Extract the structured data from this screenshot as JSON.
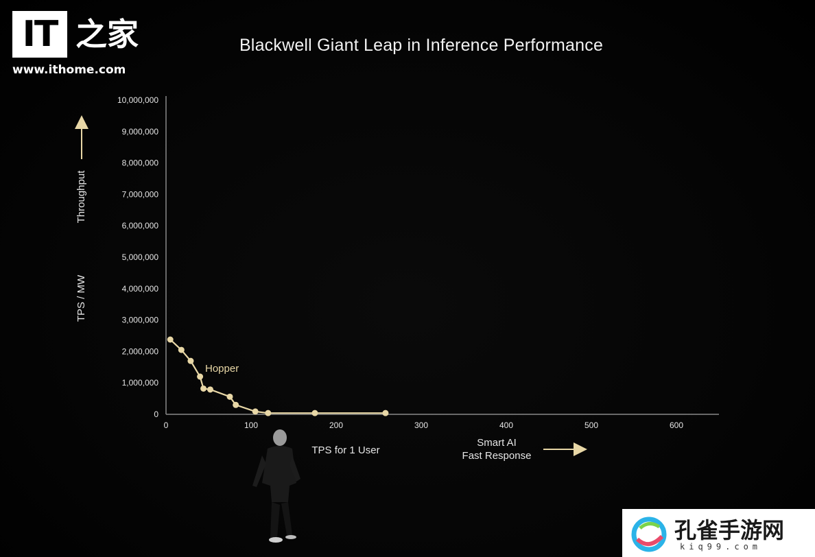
{
  "logo": {
    "mark": "IT",
    "cn_text": "之家",
    "url": "www.ithome.com"
  },
  "watermark": {
    "text": "孔雀手游网",
    "url": "kiq99.com"
  },
  "chart_data": {
    "type": "line",
    "title": "Blackwell Giant Leap in Inference Performance",
    "xlabel": "TPS for 1 User",
    "ylabel": "TPS / MW",
    "ylabel_arrow_text": "Throughput",
    "xlabel_arrow_text": [
      "Smart AI",
      "Fast Response"
    ],
    "xlim": [
      0,
      650
    ],
    "ylim": [
      0,
      10000000
    ],
    "x_ticks": [
      "0",
      "100",
      "200",
      "300",
      "400",
      "500",
      "600"
    ],
    "x_tick_values": [
      0,
      100,
      200,
      300,
      400,
      500,
      600
    ],
    "y_ticks": [
      "0",
      "1,000,000",
      "2,000,000",
      "3,000,000",
      "4,000,000",
      "5,000,000",
      "6,000,000",
      "7,000,000",
      "8,000,000",
      "9,000,000",
      "10,000,000"
    ],
    "y_tick_values": [
      0,
      1000000,
      2000000,
      3000000,
      4000000,
      5000000,
      6000000,
      7000000,
      8000000,
      9000000,
      10000000
    ],
    "grid": false,
    "series": [
      {
        "name": "Hopper",
        "color": "#e8d7a6",
        "x": [
          5,
          18,
          29,
          40,
          44,
          52,
          75,
          82,
          105,
          120,
          175,
          258
        ],
        "y": [
          2380000,
          2050000,
          1700000,
          1200000,
          820000,
          790000,
          560000,
          300000,
          90000,
          40000,
          40000,
          40000
        ]
      }
    ]
  }
}
